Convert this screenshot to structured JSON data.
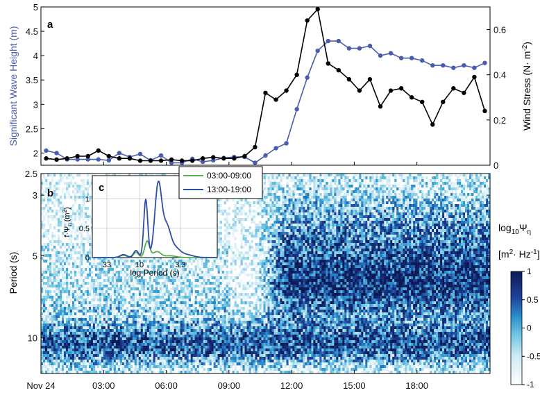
{
  "chart_data": [
    {
      "panel": "a",
      "type": "line",
      "x_ticks": [
        "Nov 24",
        "03:00",
        "06:00",
        "09:00",
        "12:00",
        "15:00",
        "18:00"
      ],
      "xlim_hours": [
        0,
        21.5
      ],
      "left_axis": {
        "label": "Significant Wave Height (m)",
        "ylim": [
          1.75,
          5.0
        ],
        "ticks": [
          2,
          2.5,
          3,
          3.5,
          4,
          4.5,
          5
        ],
        "tick_labels": [
          "2",
          "2.5",
          "3",
          "3.5",
          "4",
          "4.5",
          "5"
        ],
        "color": "#4a5cb0"
      },
      "right_axis": {
        "label_main": "Wind Stress (N",
        "label_dot": "·",
        "label_m": " m",
        "label_exp": "-2",
        "label_close": ")",
        "ylim": [
          0,
          0.7
        ],
        "ticks": [
          0,
          0.2,
          0.4,
          0.6
        ],
        "tick_labels": [
          "0",
          "0.2",
          "0.4",
          "0.6"
        ],
        "color": "#000000"
      },
      "series": [
        {
          "axis": "left",
          "color": "#4a5cb0",
          "x": [
            0.25,
            0.75,
            1.25,
            1.75,
            2.25,
            2.75,
            3.25,
            3.75,
            4.25,
            4.75,
            5.25,
            5.75,
            6.25,
            6.75,
            7.25,
            7.75,
            8.25,
            8.75,
            9.25,
            9.75,
            10.25,
            10.75,
            11.25,
            11.75,
            12.25,
            12.75,
            13.25,
            13.75,
            14.25,
            14.75,
            15.25,
            15.75,
            16.25,
            16.75,
            17.25,
            17.75,
            18.25,
            18.75,
            19.25,
            19.75,
            20.25,
            20.75,
            21.25
          ],
          "values": [
            2.05,
            2.0,
            1.87,
            1.87,
            1.87,
            1.87,
            1.85,
            2.0,
            1.92,
            1.98,
            1.85,
            1.95,
            1.8,
            1.8,
            1.88,
            1.82,
            1.85,
            1.9,
            1.92,
            1.92,
            1.8,
            1.95,
            2.1,
            2.2,
            2.9,
            3.55,
            4.1,
            4.3,
            4.3,
            4.15,
            4.15,
            4.2,
            4.0,
            4.05,
            3.95,
            3.95,
            3.9,
            3.8,
            3.8,
            3.75,
            3.8,
            3.75,
            3.85
          ]
        },
        {
          "axis": "right",
          "color": "#000000",
          "x": [
            0.25,
            0.75,
            1.25,
            1.75,
            2.25,
            2.75,
            3.25,
            3.75,
            4.25,
            4.75,
            5.25,
            5.75,
            6.25,
            6.75,
            7.25,
            7.75,
            8.25,
            8.75,
            9.25,
            9.75,
            10.25,
            10.75,
            11.25,
            11.75,
            12.25,
            12.75,
            13.25,
            13.75,
            14.25,
            14.75,
            15.25,
            15.75,
            16.25,
            16.75,
            17.25,
            17.75,
            18.25,
            18.75,
            19.25,
            19.75,
            20.25,
            20.75,
            21.25
          ],
          "values": [
            0.03,
            0.025,
            0.03,
            0.04,
            0.04,
            0.065,
            0.04,
            0.03,
            0.03,
            0.02,
            0.02,
            0.02,
            0.025,
            0.02,
            0.02,
            0.03,
            0.035,
            0.03,
            0.03,
            0.04,
            0.08,
            0.32,
            0.29,
            0.33,
            0.4,
            0.64,
            0.69,
            0.45,
            0.42,
            0.38,
            0.33,
            0.38,
            0.26,
            0.33,
            0.34,
            0.3,
            0.28,
            0.18,
            0.28,
            0.34,
            0.32,
            0.39,
            0.24
          ]
        }
      ]
    },
    {
      "panel": "b",
      "type": "heatmap",
      "x_ticks": [
        "Nov 24",
        "03:00",
        "06:00",
        "09:00",
        "12:00",
        "15:00",
        "18:00"
      ],
      "y_axis": {
        "label": "Period (s)",
        "tick_values": [
          2.5,
          3,
          5,
          10
        ],
        "tick_labels": [
          "2.5",
          "3",
          "5",
          "10"
        ]
      },
      "colorbar": {
        "label_main": "log",
        "label_sub": "10",
        "label_psi": "Ψ",
        "label_eta": "η",
        "units_open": "[m",
        "units_exp": "2",
        "units_dot": "·",
        "units_hz": " Hz",
        "units_exp2": "-1",
        "units_close": "]",
        "range": [
          -1,
          1
        ],
        "ticks": [
          1,
          0.5,
          0,
          -0.5,
          -1
        ],
        "tick_labels": [
          "1",
          "0.5",
          "0",
          "-0.5",
          "-1"
        ]
      }
    },
    {
      "panel": "c",
      "type": "line",
      "x_axis": {
        "label": "log Period (s)",
        "tick_labels": [
          "33",
          "10",
          "3.3"
        ]
      },
      "y_axis": {
        "label_f": "f",
        "label_dot": "·",
        "label_psi": "Ψ",
        "label_eta": "η",
        "label_units": "(m",
        "label_exp": "2",
        "label_close": ")",
        "ylim": [
          0,
          1.4
        ],
        "tick_labels": [
          "0",
          "0.5",
          "1"
        ]
      },
      "legend": [
        {
          "name": "03:00-09:00",
          "color": "#55b04a"
        },
        {
          "name": "13:00-19:00",
          "color": "#2d4ea8"
        }
      ]
    }
  ],
  "panel_labels": {
    "a": "a",
    "b": "b",
    "c": "c"
  }
}
